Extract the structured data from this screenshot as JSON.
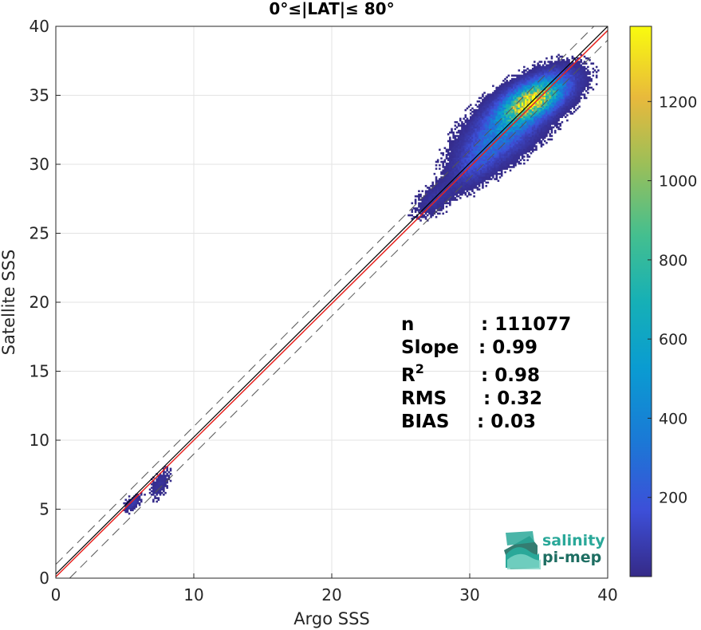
{
  "chart_data": {
    "type": "heatmap",
    "title": "0°≤|LAT|≤ 80°",
    "xlabel": "Argo SSS",
    "ylabel": "Satellite SSS",
    "xlim": [
      0,
      40
    ],
    "ylim": [
      0,
      40
    ],
    "xticks": [
      "0",
      "10",
      "20",
      "30",
      "40"
    ],
    "yticks": [
      "0",
      "5",
      "10",
      "15",
      "20",
      "25",
      "30",
      "35",
      "40"
    ],
    "grid": true,
    "colorbar": {
      "range": [
        0,
        1390
      ],
      "ticks": [
        "200",
        "400",
        "600",
        "800",
        "1000",
        "1200"
      ],
      "colormap": "parula"
    },
    "reference_lines": {
      "one_to_one_color": "#000000",
      "regression_color": "#e8231f",
      "dashed_offset": 1.0
    },
    "density_clusters": [
      {
        "x": 34.5,
        "y": 34.6,
        "sx": 1.3,
        "sy": 0.9,
        "density": 1380
      },
      {
        "x": 32.5,
        "y": 32.5,
        "sx": 1.5,
        "sy": 1.3,
        "density": 400
      },
      {
        "x": 30.5,
        "y": 30.2,
        "sx": 1.0,
        "sy": 1.0,
        "density": 150
      },
      {
        "x": 27.5,
        "y": 27.5,
        "sx": 0.8,
        "sy": 0.7,
        "density": 60
      },
      {
        "x": 5.5,
        "y": 5.4,
        "sx": 0.3,
        "sy": 0.3,
        "density": 90
      },
      {
        "x": 7.5,
        "y": 6.8,
        "sx": 0.4,
        "sy": 0.6,
        "density": 40
      }
    ],
    "stats": [
      {
        "label": "n",
        "value": ": 111077"
      },
      {
        "label": "Slope",
        "value": ": 0.99"
      },
      {
        "label": "R",
        "superscript": "2",
        "value": ": 0.98"
      },
      {
        "label": "RMS",
        "value": ": 0.32"
      },
      {
        "label": "BIAS",
        "value": ": 0.03"
      }
    ]
  },
  "logo": {
    "line1": "salinity",
    "line2": "pi-mep",
    "color1": "#2aa899",
    "color2": "#1e6e62"
  }
}
